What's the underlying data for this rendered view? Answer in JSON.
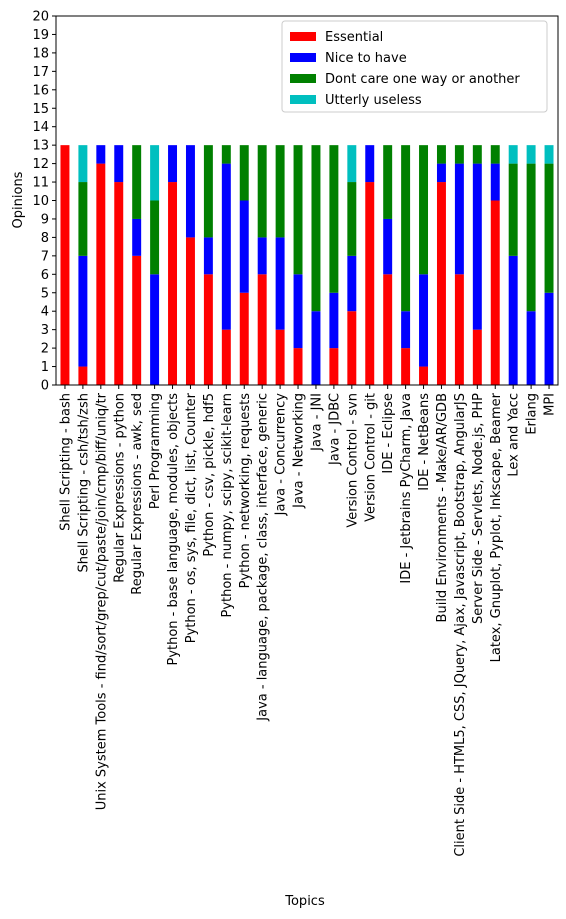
{
  "chart_data": {
    "type": "bar",
    "stacked": true,
    "title": "",
    "xlabel": "Topics",
    "ylabel": "Opinions",
    "ylim": [
      0,
      20
    ],
    "yticks": [
      0,
      1,
      2,
      3,
      4,
      5,
      6,
      7,
      8,
      9,
      10,
      11,
      12,
      13,
      14,
      15,
      16,
      17,
      18,
      19,
      20
    ],
    "grid": false,
    "legend_position": "top-right",
    "categories": [
      "Shell Scripting - bash",
      "Shell Scripting - csh/tsh/zsh",
      "Unix System Tools - find/sort/grep/cut/paste/join/cmp/biff/uniq/tr",
      "Regular Expressions - python",
      "Regular Expressions - awk, sed",
      "Perl Programming",
      "Python - base language, modules, objects",
      "Python - os, sys, file, dict, list, Counter",
      "Python - csv, pickle, hdf5",
      "Python - numpy, scipy, scikit-learn",
      "Python - networking, requests",
      "Java - language, package, class, interface, generic",
      "Java - Concurrency",
      "Java - Networking",
      "Java - JNI",
      "Java - JDBC",
      "Version Control - svn",
      "Version Control - git",
      "IDE - Eclipse",
      "IDE - Jetbrains PyCharm, Java",
      "IDE - NetBeans",
      "Build Environments - Make/AR/GDB",
      "Client Side - HTML5, CSS, JQuery, Ajax, Javascript, Bootstrap, AngularJS",
      "Server Side - Servlets, Node.js, PHP",
      "Latex, Gnuplot, Pyplot, Inkscape, Beamer",
      "Lex and Yacc",
      "Erlang",
      "MPI"
    ],
    "series": [
      {
        "name": "Essential",
        "color": "#ff0000",
        "values": [
          13,
          1,
          12,
          11,
          7,
          0,
          11,
          8,
          6,
          3,
          5,
          6,
          3,
          2,
          0,
          2,
          4,
          11,
          6,
          2,
          1,
          11,
          6,
          3,
          10,
          0,
          0,
          0
        ]
      },
      {
        "name": "Nice to have",
        "color": "#0000ff",
        "values": [
          0,
          6,
          1,
          2,
          2,
          6,
          2,
          5,
          2,
          9,
          5,
          2,
          5,
          4,
          4,
          3,
          3,
          2,
          3,
          2,
          5,
          1,
          6,
          9,
          2,
          7,
          4,
          5
        ]
      },
      {
        "name": "Dont care one way or another",
        "color": "#008000",
        "values": [
          0,
          4,
          0,
          0,
          4,
          4,
          0,
          0,
          5,
          1,
          3,
          5,
          5,
          7,
          9,
          8,
          4,
          0,
          4,
          9,
          7,
          1,
          1,
          1,
          1,
          5,
          8,
          7
        ]
      },
      {
        "name": "Utterly useless",
        "color": "#00bfbf",
        "values": [
          0,
          2,
          0,
          0,
          0,
          3,
          0,
          0,
          0,
          0,
          0,
          0,
          0,
          0,
          0,
          0,
          2,
          0,
          0,
          0,
          0,
          0,
          0,
          0,
          0,
          1,
          1,
          1
        ]
      }
    ]
  }
}
